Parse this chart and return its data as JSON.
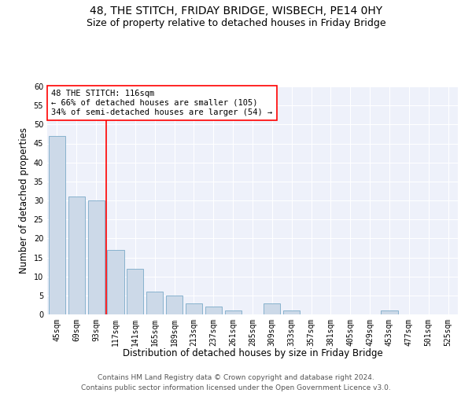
{
  "title": "48, THE STITCH, FRIDAY BRIDGE, WISBECH, PE14 0HY",
  "subtitle": "Size of property relative to detached houses in Friday Bridge",
  "xlabel": "Distribution of detached houses by size in Friday Bridge",
  "ylabel": "Number of detached properties",
  "bar_color": "#ccd9e8",
  "bar_edge_color": "#7aaac8",
  "bg_color": "#eef1fa",
  "grid_color": "#ffffff",
  "categories": [
    "45sqm",
    "69sqm",
    "93sqm",
    "117sqm",
    "141sqm",
    "165sqm",
    "189sqm",
    "213sqm",
    "237sqm",
    "261sqm",
    "285sqm",
    "309sqm",
    "333sqm",
    "357sqm",
    "381sqm",
    "405sqm",
    "429sqm",
    "453sqm",
    "477sqm",
    "501sqm",
    "525sqm"
  ],
  "values": [
    47,
    31,
    30,
    17,
    12,
    6,
    5,
    3,
    2,
    1,
    0,
    3,
    1,
    0,
    0,
    0,
    0,
    1,
    0,
    0,
    0
  ],
  "ylim": [
    0,
    60
  ],
  "yticks": [
    0,
    5,
    10,
    15,
    20,
    25,
    30,
    35,
    40,
    45,
    50,
    55,
    60
  ],
  "red_line_x": 2.5,
  "annotation_text": "48 THE STITCH: 116sqm\n← 66% of detached houses are smaller (105)\n34% of semi-detached houses are larger (54) →",
  "footer": "Contains HM Land Registry data © Crown copyright and database right 2024.\nContains public sector information licensed under the Open Government Licence v3.0.",
  "title_fontsize": 10,
  "subtitle_fontsize": 9,
  "xlabel_fontsize": 8.5,
  "ylabel_fontsize": 8.5,
  "annotation_fontsize": 7.5,
  "footer_fontsize": 6.5,
  "tick_fontsize": 7
}
